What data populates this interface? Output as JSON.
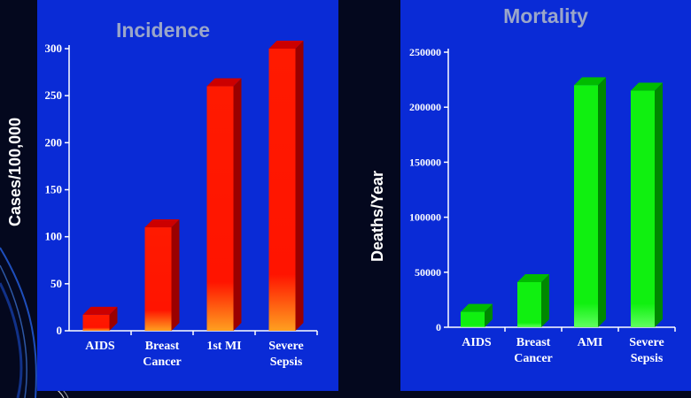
{
  "chart_data": [
    {
      "type": "bar",
      "title": "Incidence",
      "ylabel": "Cases/100,000",
      "xlabel": "",
      "categories": [
        [
          "AIDS"
        ],
        [
          "Breast",
          "Cancer"
        ],
        [
          "1st MI"
        ],
        [
          "Severe",
          "Sepsis"
        ]
      ],
      "values": [
        17,
        110,
        260,
        300
      ],
      "ylim": [
        0,
        300
      ],
      "yticks": [
        0,
        50,
        100,
        150,
        200,
        250,
        300
      ],
      "bar_color": "#ff0000",
      "grid": false,
      "legend": "none"
    },
    {
      "type": "bar",
      "title": "Mortality",
      "ylabel": "Deaths/Year",
      "xlabel": "",
      "categories": [
        [
          "AIDS"
        ],
        [
          "Breast",
          "Cancer"
        ],
        [
          "AMI"
        ],
        [
          "Severe",
          "Sepsis"
        ]
      ],
      "values": [
        14000,
        41000,
        220000,
        215000
      ],
      "ylim": [
        0,
        250000
      ],
      "yticks": [
        0,
        50000,
        100000,
        150000,
        200000,
        250000
      ],
      "bar_color": "#00ee00",
      "grid": false,
      "legend": "none"
    }
  ],
  "colors": {
    "background": "#04081e",
    "panel": "#0a2bd6",
    "axis": "#ffffff",
    "title": "#9aa6c9"
  }
}
